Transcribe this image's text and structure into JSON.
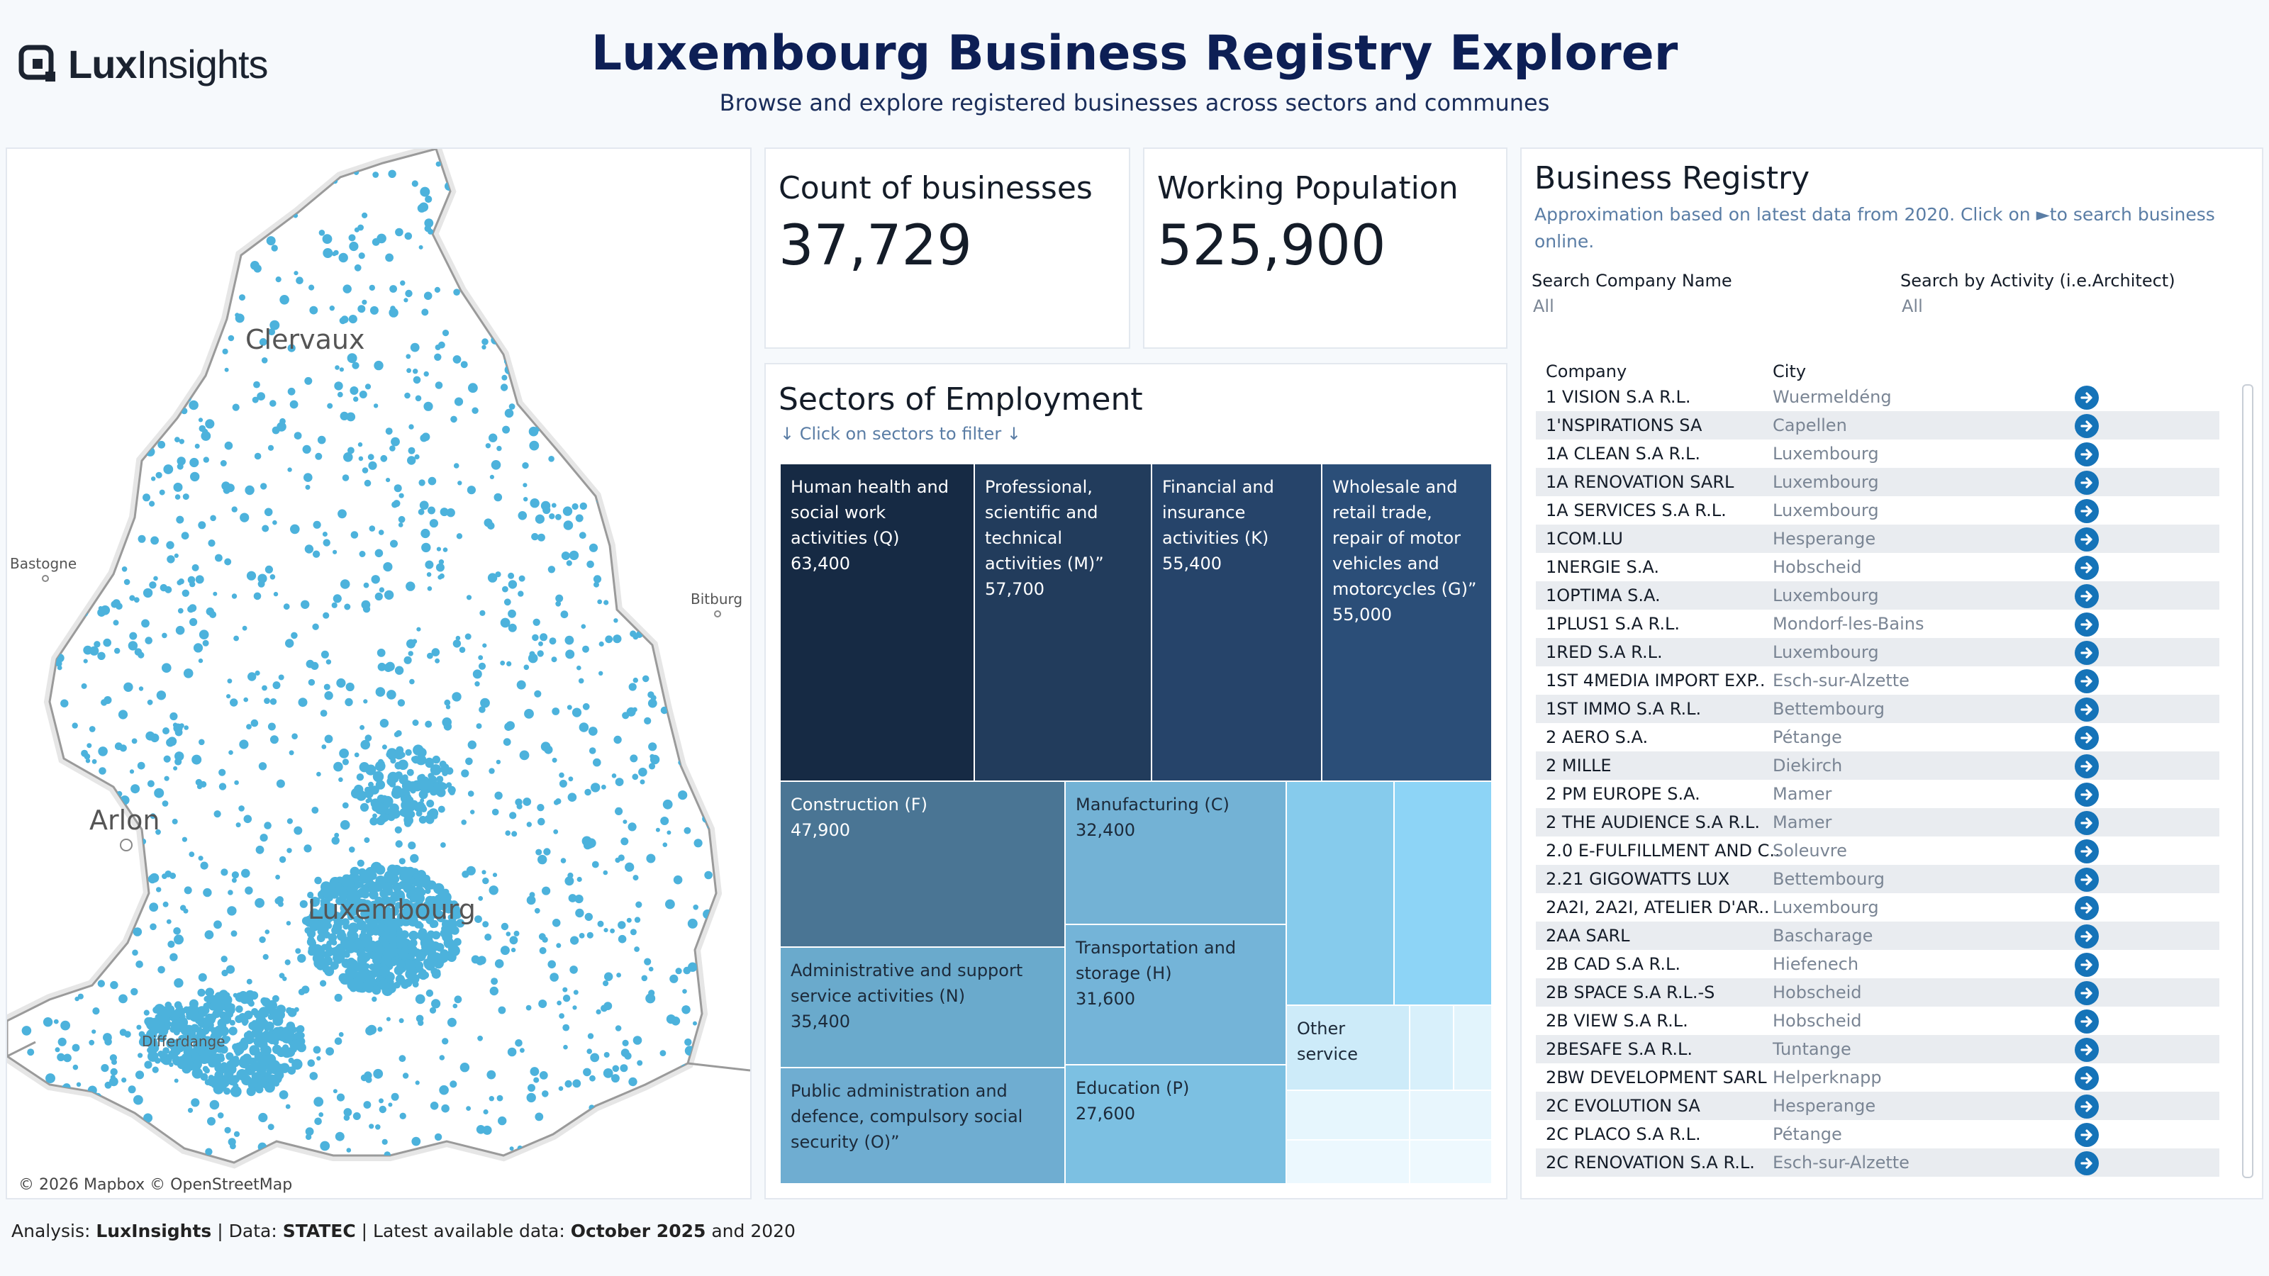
{
  "header": {
    "logo_text_bold": "Lux",
    "logo_text_light": "Insights",
    "title": "Luxembourg Business Registry Explorer",
    "subtitle": "Browse and explore registered businesses across sectors and communes"
  },
  "map": {
    "places": {
      "clervaux": "Clervaux",
      "bastogne": "Bastogne",
      "bitburg": "Bitburg",
      "arlon": "Arlon",
      "luxembourg": "Luxembourg",
      "differdange": "Differdange"
    },
    "attribution": "© 2026 Mapbox © OpenStreetMap",
    "dot_color": "#4cb2dc"
  },
  "kpis": {
    "businesses": {
      "label": "Count of businesses",
      "value": "37,729"
    },
    "population": {
      "label": "Working Population",
      "value": "525,900"
    }
  },
  "sectors": {
    "title": "Sectors of Employment",
    "hint": "↓ Click on sectors to filter  ↓",
    "tiles": [
      {
        "name": "Human health and social work activities (Q)",
        "value": "63,400",
        "color": "#162a44"
      },
      {
        "name": "Professional, scientific and technical activities (M)”",
        "value": "57,700",
        "color": "#223c5c"
      },
      {
        "name": "Financial and insurance activities (K)",
        "value": "55,400",
        "color": "#26446a"
      },
      {
        "name": "Wholesale and retail trade, repair of motor vehicles and motorcycles (G)”",
        "value": "55,000",
        "color": "#2b4e78"
      },
      {
        "name": "Construction (F)",
        "value": "47,900",
        "color": "#4a7594"
      },
      {
        "name": "Manufacturing (C)",
        "value": "32,400",
        "color": "#73b2d5"
      },
      {
        "name": "Administrative and support service activities (N)",
        "value": "35,400",
        "color": "#6aaacc"
      },
      {
        "name": "Transportation and storage (H)",
        "value": "31,600",
        "color": "#74b4d8"
      },
      {
        "name": "Public administration and defence, compulsory social security (O)”",
        "value": "",
        "color": "#6fadd1"
      },
      {
        "name": "Education (P)",
        "value": "27,600",
        "color": "#7cc0e2"
      },
      {
        "name": "Other service",
        "value": "",
        "color": "#cdebf9"
      }
    ],
    "filler_colors": [
      "#86cbec",
      "#8dd4f6",
      "#d8f0fb",
      "#e2f4fc",
      "#e6f6fd",
      "#e8f6fd",
      "#ecf8fe",
      "#eef9fe"
    ]
  },
  "registry": {
    "title": "Business Registry",
    "note": "Approximation based on latest data from 2020. Click on ►to search business online.",
    "filters": {
      "company_label": "Search Company Name",
      "company_value": "All",
      "activity_label": "Search by Activity (i.e.Architect)",
      "activity_value": "All"
    },
    "columns": {
      "company": "Company",
      "city": "City"
    },
    "rows": [
      {
        "company": "1 VISION S.A R.L.",
        "city": "Wuermeldéng"
      },
      {
        "company": "1'NSPIRATIONS SA",
        "city": "Capellen"
      },
      {
        "company": "1A CLEAN S.A R.L.",
        "city": "Luxembourg"
      },
      {
        "company": "1A RENOVATION SARL",
        "city": "Luxembourg"
      },
      {
        "company": "1A SERVICES S.A R.L.",
        "city": "Luxembourg"
      },
      {
        "company": "1COM.LU",
        "city": "Hesperange"
      },
      {
        "company": "1NERGIE S.A.",
        "city": "Hobscheid"
      },
      {
        "company": "1OPTIMA S.A.",
        "city": "Luxembourg"
      },
      {
        "company": "1PLUS1 S.A R.L.",
        "city": "Mondorf-les-Bains"
      },
      {
        "company": "1RED S.A R.L.",
        "city": "Luxembourg"
      },
      {
        "company": "1ST 4MEDIA IMPORT EXP..",
        "city": "Esch-sur-Alzette"
      },
      {
        "company": "1ST IMMO S.A R.L.",
        "city": "Bettembourg"
      },
      {
        "company": "2 AERO S.A.",
        "city": "Pétange"
      },
      {
        "company": "2 MILLE",
        "city": "Diekirch"
      },
      {
        "company": "2 PM EUROPE S.A.",
        "city": "Mamer"
      },
      {
        "company": "2 THE AUDIENCE S.A R.L.",
        "city": "Mamer"
      },
      {
        "company": "2.0 E-FULFILLMENT AND C..",
        "city": "Soleuvre"
      },
      {
        "company": "2.21 GIGOWATTS LUX",
        "city": "Bettembourg"
      },
      {
        "company": "2A2I, 2A2I, ATELIER D'AR..",
        "city": "Luxembourg"
      },
      {
        "company": "2AA SARL",
        "city": "Bascharage"
      },
      {
        "company": "2B CAD S.A R.L.",
        "city": "Hiefenech"
      },
      {
        "company": "2B SPACE S.A R.L.-S",
        "city": "Hobscheid"
      },
      {
        "company": "2B VIEW S.A R.L.",
        "city": "Hobscheid"
      },
      {
        "company": "2BESAFE S.A R.L.",
        "city": "Tuntange"
      },
      {
        "company": "2BW DEVELOPMENT SARL",
        "city": "Helperknapp"
      },
      {
        "company": "2C EVOLUTION SA",
        "city": "Hesperange"
      },
      {
        "company": "2C PLACO S.A R.L.",
        "city": "Pétange"
      },
      {
        "company": "2C RENOVATION S.A R.L.",
        "city": "Esch-sur-Alzette"
      }
    ]
  },
  "footer": {
    "p1": "Analysis: ",
    "b1": "LuxInsights",
    "p2": " | Data: ",
    "b2": "STATEC",
    "p3": " | Latest available data: ",
    "b3": "October 2025",
    "p4": " and 2020"
  }
}
